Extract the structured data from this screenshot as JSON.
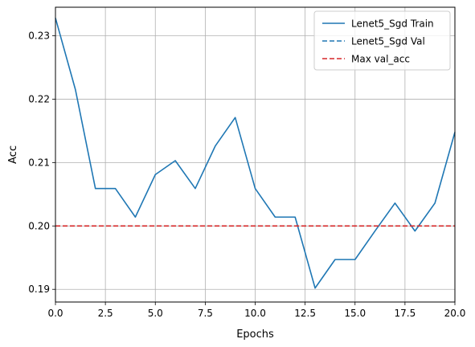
{
  "chart_data": {
    "type": "line",
    "title": "",
    "xlabel": "Epochs",
    "ylabel": "Acc",
    "xlim": [
      0,
      20
    ],
    "ylim": [
      0.188,
      0.2345
    ],
    "xticks": [
      0,
      2.5,
      5,
      7.5,
      10,
      12.5,
      15,
      17.5,
      20
    ],
    "xtick_labels": [
      "0.0",
      "2.5",
      "5.0",
      "7.5",
      "10.0",
      "12.5",
      "15.0",
      "17.5",
      "20.0"
    ],
    "yticks": [
      0.19,
      0.2,
      0.21,
      0.22,
      0.23
    ],
    "ytick_labels": [
      "0.19",
      "0.20",
      "0.21",
      "0.22",
      "0.23"
    ],
    "grid": true,
    "legend_position": "top-right",
    "series": [
      {
        "name": "Lenet5_Sgd Train",
        "style": "solid",
        "color": "#1f77b4",
        "x": [
          0,
          1,
          2,
          3,
          4,
          5,
          6,
          7,
          8,
          9,
          10,
          11,
          12,
          13,
          14,
          15,
          16,
          17,
          18,
          19,
          20
        ],
        "y": [
          0.2328,
          0.2215,
          0.2059,
          0.2059,
          0.2014,
          0.2081,
          0.2103,
          0.2059,
          0.2126,
          0.2171,
          0.2059,
          0.2014,
          0.2014,
          0.1902,
          0.1947,
          0.1947,
          0.1992,
          0.2036,
          0.1992,
          0.2036,
          0.2148
        ]
      },
      {
        "name": "Lenet5_Sgd Val",
        "style": "dashed",
        "color": "#1f77b4",
        "x": [],
        "y": []
      },
      {
        "name": "Max val_acc",
        "style": "dashed",
        "color": "#d62728",
        "type": "hline",
        "y_value": 0.2
      }
    ]
  }
}
